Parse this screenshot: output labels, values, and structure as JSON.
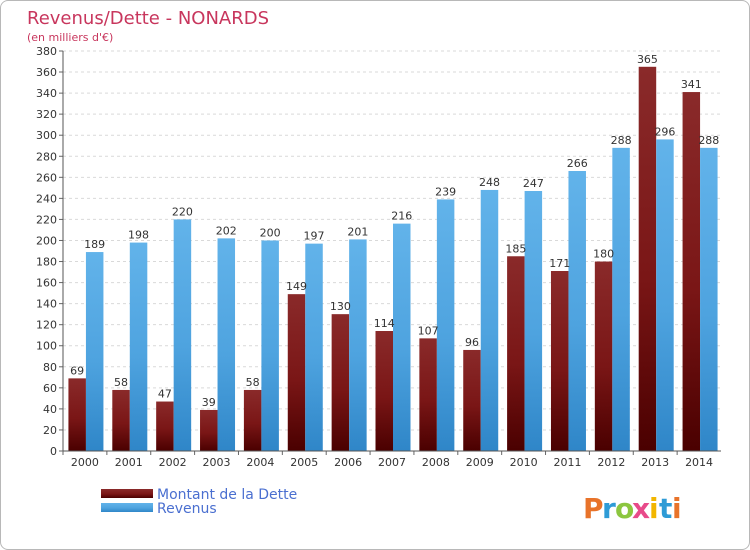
{
  "chart_data": {
    "type": "bar",
    "title": "Revenus/Dette - NONARDS",
    "subtitle": "(en milliers d'€)",
    "categories": [
      "2000",
      "2001",
      "2002",
      "2003",
      "2004",
      "2005",
      "2006",
      "2007",
      "2008",
      "2009",
      "2010",
      "2011",
      "2012",
      "2013",
      "2014"
    ],
    "series": [
      {
        "name": "Montant de la Dette",
        "color": "#7a1515",
        "values": [
          69,
          58,
          47,
          39,
          58,
          149,
          130,
          114,
          107,
          96,
          185,
          171,
          180,
          365,
          341
        ]
      },
      {
        "name": "Revenus",
        "color": "#4ea3df",
        "values": [
          189,
          198,
          220,
          202,
          200,
          197,
          201,
          216,
          239,
          248,
          247,
          266,
          288,
          296,
          288
        ]
      }
    ],
    "ylim": [
      0,
      380
    ],
    "ytick_step": 20,
    "grid": true,
    "legend_position": "bottom-left"
  },
  "logo": {
    "letters": [
      "P",
      "r",
      "o",
      "x",
      "i",
      "t",
      "i"
    ],
    "colors": [
      "#e8732a",
      "#2e9bd6",
      "#8cc63f",
      "#e84a8a",
      "#f2b600",
      "#2e9bd6",
      "#e8732a"
    ]
  }
}
